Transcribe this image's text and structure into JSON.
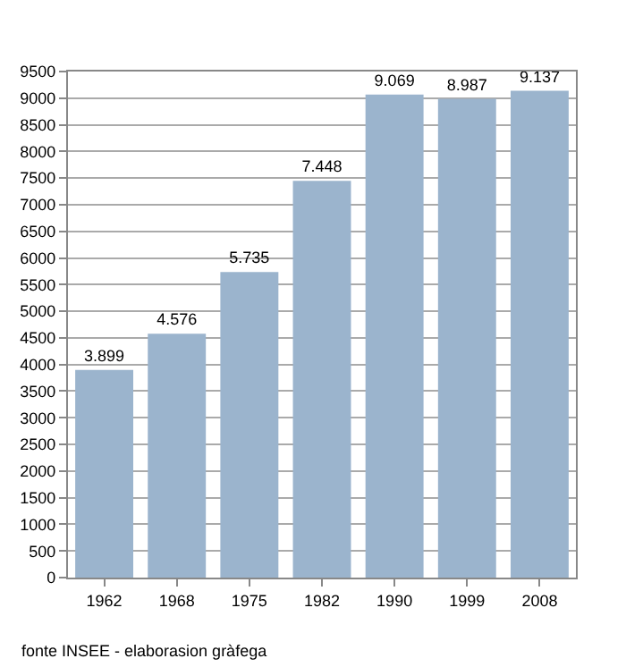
{
  "chart_data": {
    "type": "bar",
    "categories": [
      "1962",
      "1968",
      "1975",
      "1982",
      "1990",
      "1999",
      "2008"
    ],
    "values": [
      3899,
      4576,
      5735,
      7448,
      9069,
      8987,
      9137
    ],
    "value_labels": [
      "3.899",
      "4.576",
      "5.735",
      "7.448",
      "9.069",
      "8.987",
      "9.137"
    ],
    "color": "#9bb4cd",
    "ylim": [
      0,
      9500
    ],
    "yticks": [
      0,
      500,
      1000,
      1500,
      2000,
      2500,
      3000,
      3500,
      4000,
      4500,
      5000,
      5500,
      6000,
      6500,
      7000,
      7500,
      8000,
      8500,
      9000,
      9500
    ],
    "grid": "y",
    "annotations": [
      "fonte INSEE - elaborasion gràfega"
    ]
  }
}
